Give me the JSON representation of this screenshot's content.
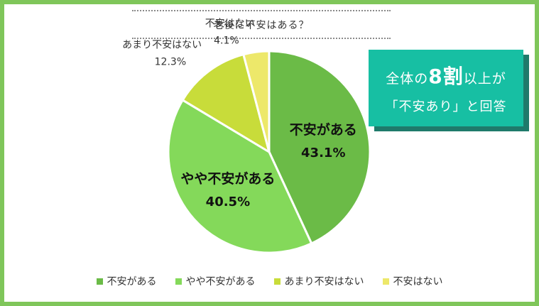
{
  "colors": {
    "frame": "#7fc65a",
    "callout_bg": "#17bfa3",
    "callout_shadow": "#1f7a6b",
    "text": "#333333"
  },
  "chart_data": {
    "type": "pie",
    "title": "老後に不安はある？",
    "slices": [
      {
        "label": "不安がある",
        "value": 43.1,
        "value_label": "43.1%",
        "color": "#6bbb47",
        "label_style": "inside"
      },
      {
        "label": "やや不安がある",
        "value": 40.5,
        "value_label": "40.5%",
        "color": "#84d95a",
        "label_style": "inside"
      },
      {
        "label": "あまり不安はない",
        "value": 12.3,
        "value_label": "12.3%",
        "color": "#c8dc3a",
        "label_style": "outside"
      },
      {
        "label": "不安はない",
        "value": 4.1,
        "value_label": "4.1%",
        "color": "#ede86a",
        "label_style": "outside"
      }
    ],
    "legend_position": "bottom"
  },
  "callout": {
    "line1_pre": "全体の",
    "line1_num": "8割",
    "line1_post": "以上が",
    "line2": "「不安あり」と回答"
  }
}
